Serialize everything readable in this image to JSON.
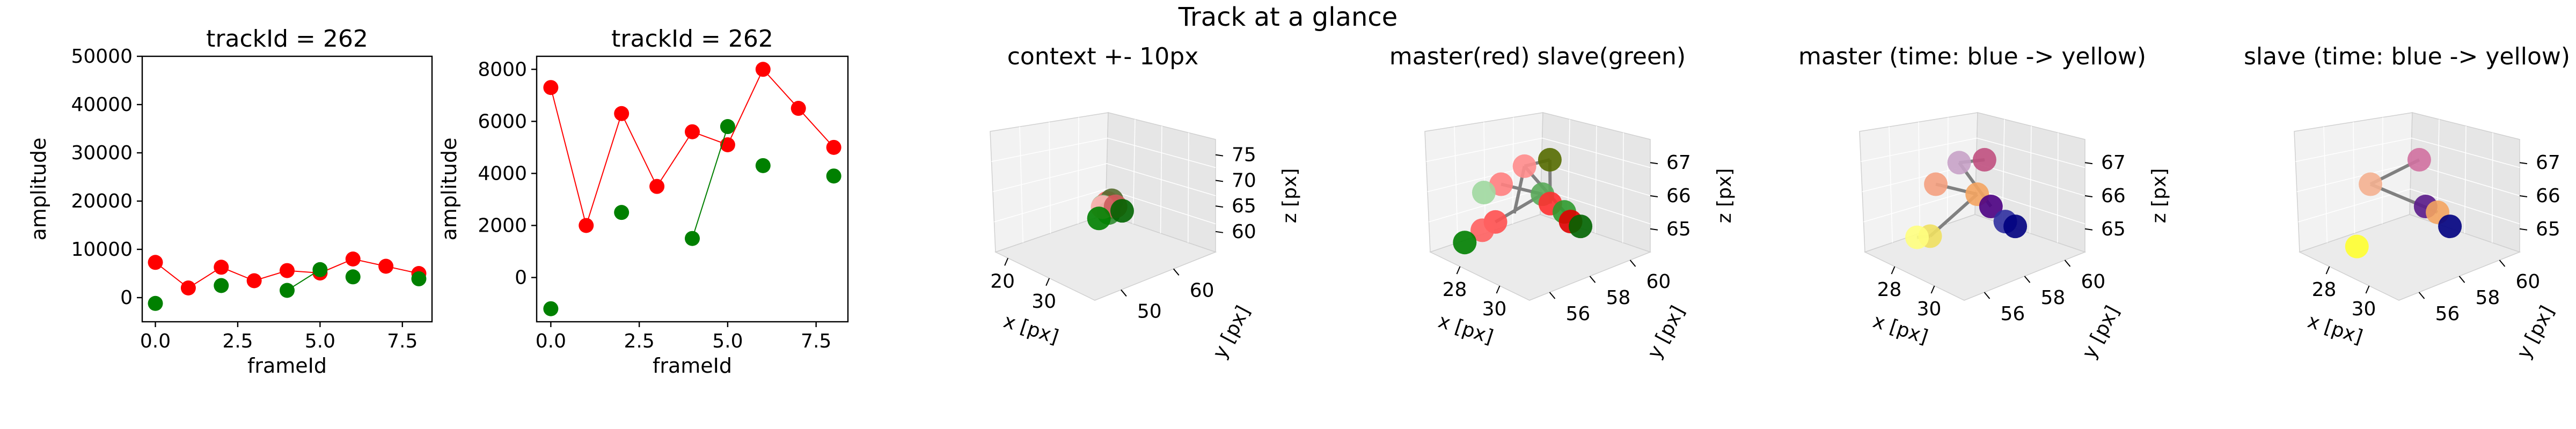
{
  "figure": {
    "suptitle": "Track at a glance"
  },
  "colors": {
    "master": "#ff0000",
    "slave": "#008000",
    "line_gray": "#808080",
    "pane_left": "#f2f2f2",
    "pane_right": "#e6e6e6",
    "pane_floor": "#ebebeb"
  },
  "chart_data": [
    {
      "id": "amp1",
      "type": "scatter",
      "title": "trackId = 262",
      "xlabel": "frameId",
      "ylabel": "amplitude",
      "xlim": [
        -0.4,
        8.4
      ],
      "ylim": [
        -5000,
        50000
      ],
      "xticks": [
        "0.0",
        "2.5",
        "5.0",
        "7.5"
      ],
      "xtick_values": [
        0,
        2.5,
        5,
        7.5
      ],
      "yticks": [
        "0",
        "10000",
        "20000",
        "30000",
        "40000",
        "50000"
      ],
      "ytick_values": [
        0,
        10000,
        20000,
        30000,
        40000,
        50000
      ],
      "series": [
        {
          "color": "#ff0000",
          "x": [
            0,
            1,
            2,
            3,
            4,
            5,
            6,
            7,
            8
          ],
          "y": [
            7300,
            2000,
            6300,
            3500,
            5600,
            5100,
            8000,
            6500,
            5000
          ],
          "line": true
        },
        {
          "color": "#008000",
          "x": [
            0,
            2,
            4,
            5,
            6,
            8
          ],
          "y": [
            -1200,
            2500,
            1500,
            5800,
            4300,
            3900
          ],
          "line_segment": [
            [
              4,
              1500
            ],
            [
              5,
              5800
            ]
          ]
        }
      ]
    },
    {
      "id": "amp2",
      "type": "scatter",
      "title": "trackId = 262",
      "xlabel": "frameId",
      "ylabel": "amplitude",
      "xlim": [
        -0.4,
        8.4
      ],
      "ylim": [
        -1700,
        8500
      ],
      "xticks": [
        "0.0",
        "2.5",
        "5.0",
        "7.5"
      ],
      "xtick_values": [
        0,
        2.5,
        5,
        7.5
      ],
      "yticks": [
        "0",
        "2000",
        "4000",
        "6000",
        "8000"
      ],
      "ytick_values": [
        0,
        2000,
        4000,
        6000,
        8000
      ],
      "series": [
        {
          "color": "#ff0000",
          "x": [
            0,
            1,
            2,
            3,
            4,
            5,
            6,
            7,
            8
          ],
          "y": [
            7300,
            2000,
            6300,
            3500,
            5600,
            5100,
            8000,
            6500,
            5000
          ],
          "line": true
        },
        {
          "color": "#008000",
          "x": [
            0,
            2,
            4,
            5,
            6,
            8
          ],
          "y": [
            -1200,
            2500,
            1500,
            5800,
            4300,
            3900
          ],
          "line_segment": [
            [
              4,
              1500
            ],
            [
              5,
              5800
            ]
          ]
        }
      ]
    },
    {
      "id": "ctx",
      "type": "scatter3d",
      "title": "context +- 10px",
      "xlabel": "x [px]",
      "ylabel": "y [px]",
      "zlabel": "z [px]",
      "xlim": [
        17,
        41
      ],
      "ylim": [
        45,
        68
      ],
      "zlim": [
        56,
        78
      ],
      "xticks": [
        "20",
        "30"
      ],
      "xtick_values": [
        20,
        30
      ],
      "yticks": [
        "50",
        "60"
      ],
      "ytick_values": [
        50,
        60
      ],
      "zticks": [
        "60",
        "65",
        "70",
        "75"
      ],
      "ztick_values": [
        60,
        65,
        70,
        75
      ],
      "points": [
        {
          "x": 29,
          "y": 58,
          "z": 65.5,
          "color": "#ff6060"
        },
        {
          "x": 29.5,
          "y": 58.5,
          "z": 66.0,
          "color": "#556b2f"
        },
        {
          "x": 30,
          "y": 57.5,
          "z": 65.2,
          "color": "#ff3030"
        },
        {
          "x": 28.5,
          "y": 57.5,
          "z": 64.8,
          "color": "#90c090"
        },
        {
          "x": 30.5,
          "y": 57,
          "z": 64.5,
          "color": "#2e8b2e"
        },
        {
          "x": 29,
          "y": 57,
          "z": 65.0,
          "color": "#ffb0b0"
        },
        {
          "x": 31,
          "y": 58,
          "z": 65.6,
          "color": "#cd5c5c"
        },
        {
          "x": 32,
          "y": 58.5,
          "z": 65.0,
          "color": "#006400"
        },
        {
          "x": 28.7,
          "y": 56.5,
          "z": 63.0,
          "color": "#008000"
        }
      ],
      "lines": [
        [
          [
            28.5,
            57.5,
            64.8
          ],
          [
            30.5,
            58.5,
            66.0
          ]
        ],
        [
          [
            29,
            58,
            65.5
          ],
          [
            31,
            57.5,
            65.1
          ]
        ]
      ]
    },
    {
      "id": "ms",
      "type": "scatter3d",
      "title": "master(red) slave(green)",
      "xlabel": "x [px]",
      "ylabel": "y [px]",
      "zlabel": "z [px]",
      "xlim": [
        26.5,
        31.5
      ],
      "ylim": [
        55,
        61
      ],
      "zlim": [
        64.3,
        67.7
      ],
      "xticks": [
        "28",
        "30"
      ],
      "xtick_values": [
        28,
        30
      ],
      "yticks": [
        "56",
        "58",
        "60"
      ],
      "ytick_values": [
        56,
        58,
        60
      ],
      "zticks": [
        "65",
        "66",
        "67"
      ],
      "ztick_values": [
        65,
        66,
        67
      ],
      "points": [
        {
          "x": 28.2,
          "y": 58.3,
          "z": 66.6,
          "color": "#ff8c8c"
        },
        {
          "x": 29.2,
          "y": 58.6,
          "z": 67.0,
          "color": "#556b00"
        },
        {
          "x": 27.3,
          "y": 58.0,
          "z": 65.9,
          "color": "#ff8080"
        },
        {
          "x": 26.8,
          "y": 57.6,
          "z": 65.6,
          "color": "#a0d8a0"
        },
        {
          "x": 29.2,
          "y": 58.2,
          "z": 66.1,
          "color": "#5aaa5a"
        },
        {
          "x": 29.5,
          "y": 58.3,
          "z": 65.9,
          "color": "#ff3030"
        },
        {
          "x": 30.3,
          "y": 58.2,
          "z": 65.9,
          "color": "#2e9a2e"
        },
        {
          "x": 30.8,
          "y": 58.0,
          "z": 65.8,
          "color": "#e00000"
        },
        {
          "x": 31.3,
          "y": 58.0,
          "z": 65.8,
          "color": "#006400"
        },
        {
          "x": 28.4,
          "y": 56.5,
          "z": 65.4,
          "color": "#ff5050"
        },
        {
          "x": 28.2,
          "y": 56.0,
          "z": 65.2,
          "color": "#ff6060"
        },
        {
          "x": 27.5,
          "y": 55.8,
          "z": 64.7,
          "color": "#008000"
        }
      ],
      "lines": [
        [
          [
            28.2,
            58.3,
            66.6
          ],
          [
            29.2,
            58.6,
            67.0
          ]
        ],
        [
          [
            27.3,
            58.0,
            65.9
          ],
          [
            29.2,
            58.2,
            66.1
          ]
        ],
        [
          [
            28.2,
            58.3,
            66.6
          ],
          [
            28.7,
            57.2,
            65.6
          ]
        ],
        [
          [
            29.2,
            58.6,
            67.0
          ],
          [
            29.5,
            58.3,
            65.9
          ]
        ],
        [
          [
            28.2,
            58.3,
            66.6
          ],
          [
            30.3,
            58.2,
            65.9
          ]
        ],
        [
          [
            29.2,
            58.2,
            66.1
          ],
          [
            28.4,
            56.5,
            65.4
          ]
        ]
      ]
    },
    {
      "id": "master",
      "type": "scatter3d",
      "title": "master (time: blue -> yellow)",
      "xlabel": "x [px]",
      "ylabel": "y [px]",
      "zlabel": "z [px]",
      "xlim": [
        26.5,
        31.5
      ],
      "ylim": [
        55,
        61
      ],
      "zlim": [
        64.3,
        67.7
      ],
      "xticks": [
        "28",
        "30"
      ],
      "xtick_values": [
        28,
        30
      ],
      "yticks": [
        "56",
        "58",
        "60"
      ],
      "ytick_values": [
        56,
        58,
        60
      ],
      "zticks": [
        "65",
        "66",
        "67"
      ],
      "ztick_values": [
        65,
        66,
        67
      ],
      "points": [
        {
          "x": 28.2,
          "y": 58.3,
          "z": 66.7,
          "color": "#c8a2c8"
        },
        {
          "x": 29.2,
          "y": 58.6,
          "z": 67.0,
          "color": "#c05080"
        },
        {
          "x": 27.3,
          "y": 58.0,
          "z": 65.9,
          "color": "#f4a080"
        },
        {
          "x": 29.2,
          "y": 58.2,
          "z": 66.1,
          "color": "#f4a460"
        },
        {
          "x": 29.8,
          "y": 58.3,
          "z": 65.9,
          "color": "#4b0082"
        },
        {
          "x": 30.8,
          "y": 58.0,
          "z": 65.8,
          "color": "#3030a0"
        },
        {
          "x": 31.3,
          "y": 58.0,
          "z": 65.8,
          "color": "#000080"
        },
        {
          "x": 28.4,
          "y": 56.5,
          "z": 65.0,
          "color": "#f0e060"
        },
        {
          "x": 28.2,
          "y": 56.0,
          "z": 65.0,
          "color": "#ffff80"
        }
      ],
      "lines": [
        [
          [
            28.2,
            58.3,
            66.7
          ],
          [
            29.2,
            58.6,
            67.0
          ]
        ],
        [
          [
            27.3,
            58.0,
            65.9
          ],
          [
            29.2,
            58.2,
            66.1
          ]
        ],
        [
          [
            29.2,
            58.2,
            66.1
          ],
          [
            28.4,
            56.5,
            65.0
          ]
        ],
        [
          [
            28.4,
            56.5,
            65.0
          ],
          [
            28.2,
            56.0,
            65.0
          ]
        ],
        [
          [
            28.2,
            58.3,
            66.7
          ],
          [
            29.8,
            58.3,
            65.9
          ]
        ]
      ]
    },
    {
      "id": "slave",
      "type": "scatter3d",
      "title": "slave (time: blue -> yellow)",
      "xlabel": "x [px]",
      "ylabel": "y [px]",
      "zlabel": "z [px]",
      "xlim": [
        26.5,
        31.5
      ],
      "ylim": [
        55,
        61
      ],
      "zlim": [
        64.3,
        67.7
      ],
      "xticks": [
        "28",
        "30"
      ],
      "xtick_values": [
        28,
        30
      ],
      "yticks": [
        "56",
        "58",
        "60"
      ],
      "ytick_values": [
        56,
        58,
        60
      ],
      "zticks": [
        "65",
        "66",
        "67"
      ],
      "ztick_values": [
        65,
        66,
        67
      ],
      "points": [
        {
          "x": 29.2,
          "y": 58.6,
          "z": 67.0,
          "color": "#d070a0"
        },
        {
          "x": 27.3,
          "y": 58.0,
          "z": 65.9,
          "color": "#f4b090"
        },
        {
          "x": 29.8,
          "y": 58.3,
          "z": 65.9,
          "color": "#5a1a8a"
        },
        {
          "x": 30.4,
          "y": 58.3,
          "z": 65.9,
          "color": "#f4a460"
        },
        {
          "x": 31.3,
          "y": 58.0,
          "z": 65.8,
          "color": "#000080"
        },
        {
          "x": 28.0,
          "y": 56.5,
          "z": 64.6,
          "color": "#ffff30"
        }
      ],
      "lines": [
        [
          [
            27.3,
            58.0,
            65.9
          ],
          [
            29.2,
            58.6,
            67.0
          ]
        ],
        [
          [
            27.3,
            58.0,
            65.9
          ],
          [
            30.4,
            58.3,
            65.9
          ]
        ]
      ]
    }
  ]
}
